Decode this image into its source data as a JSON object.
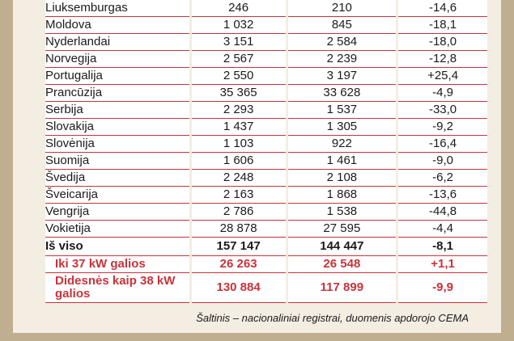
{
  "table": {
    "rows": [
      {
        "name": "Liuksemburgas",
        "a": "246",
        "b": "210",
        "c": "-14,6"
      },
      {
        "name": "Moldova",
        "a": "1 032",
        "b": "845",
        "c": "-18,1"
      },
      {
        "name": "Nyderlandai",
        "a": "3 151",
        "b": "2 584",
        "c": "-18,0"
      },
      {
        "name": "Norvegija",
        "a": "2 567",
        "b": "2 239",
        "c": "-12,8"
      },
      {
        "name": "Portugalija",
        "a": "2 550",
        "b": "3 197",
        "c": "+25,4"
      },
      {
        "name": "Prancūzija",
        "a": "35 365",
        "b": "33 628",
        "c": "-4,9"
      },
      {
        "name": "Serbija",
        "a": "2 293",
        "b": "1 537",
        "c": "-33,0"
      },
      {
        "name": "Slovakija",
        "a": "1 437",
        "b": "1 305",
        "c": "-9,2"
      },
      {
        "name": "Slovėnija",
        "a": "1 103",
        "b": "922",
        "c": "-16,4"
      },
      {
        "name": "Suomija",
        "a": "1 606",
        "b": "1 461",
        "c": "-9,0"
      },
      {
        "name": "Švedija",
        "a": "2 248",
        "b": "2 108",
        "c": "-6,2"
      },
      {
        "name": "Šveicarija",
        "a": "2 163",
        "b": "1 868",
        "c": "-13,6"
      },
      {
        "name": "Vengrija",
        "a": "2 786",
        "b": "1 538",
        "c": "-44,8"
      },
      {
        "name": "Vokietija",
        "a": "28 878",
        "b": "27 595",
        "c": "-4,4"
      }
    ],
    "total": {
      "name": "Iš viso",
      "a": "157 147",
      "b": "144 447",
      "c": "-8,1"
    },
    "small": {
      "name": "Iki 37 kW galios",
      "a": "26 263",
      "b": "26 548",
      "c": "+1,1"
    },
    "large": {
      "name": "Didesnės kaip 38 kW galios",
      "a": "130 884",
      "b": "117 899",
      "c": "-9,9"
    }
  },
  "source": "Šaltinis – nacionaliniai registrai, duomenis apdorojo CEMA"
}
